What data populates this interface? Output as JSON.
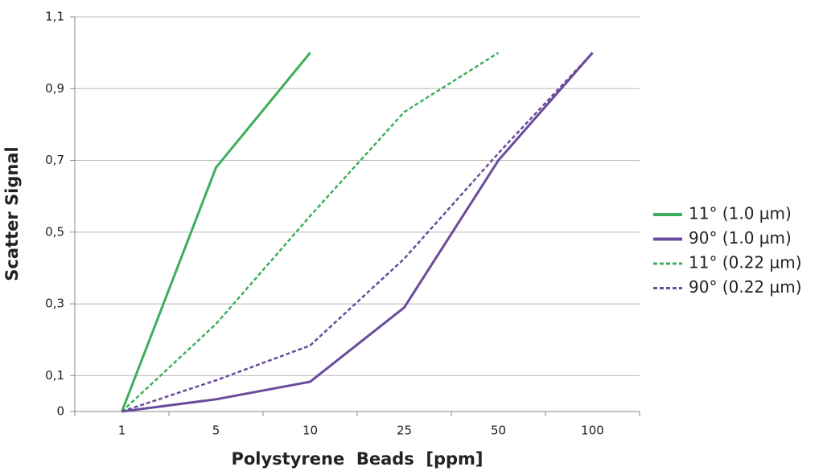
{
  "chart_data": {
    "type": "line",
    "xlabel": "Polystyrene  Beads  [ppm]",
    "ylabel": "Scatter Signal",
    "categories": [
      "1",
      "5",
      "10",
      "25",
      "50",
      "100"
    ],
    "series": [
      {
        "name": "11° (1.0 µm)",
        "color": "#3dae5b",
        "dashed": false,
        "values": [
          0,
          0.68,
          1.0,
          null,
          null,
          null
        ]
      },
      {
        "name": "90° (1.0 µm)",
        "color": "#6a4c9c",
        "dashed": false,
        "values": [
          0,
          0.034,
          0.083,
          0.29,
          0.7,
          1.0
        ]
      },
      {
        "name": "11° (0.22 µm)",
        "color": "#3dae5b",
        "dashed": true,
        "values": [
          0,
          0.244,
          0.545,
          0.835,
          1.0,
          null
        ]
      },
      {
        "name": "90° (0.22 µm)",
        "color": "#6a4c9c",
        "dashed": true,
        "values": [
          0,
          0.087,
          0.184,
          0.426,
          0.72,
          1.0
        ]
      }
    ],
    "ylim": [
      0,
      1.1
    ],
    "yticks": [
      0,
      {
        "value": 0.1,
        "label": "0,1"
      },
      {
        "value": 0.3,
        "label": "0,3"
      },
      {
        "value": 0.5,
        "label": "0,5"
      },
      {
        "value": 0.7,
        "label": "0,7"
      },
      {
        "value": 0.9,
        "label": "0,9"
      },
      {
        "value": 1.1,
        "label": "1,1"
      }
    ],
    "grid": true,
    "legend": "right"
  }
}
